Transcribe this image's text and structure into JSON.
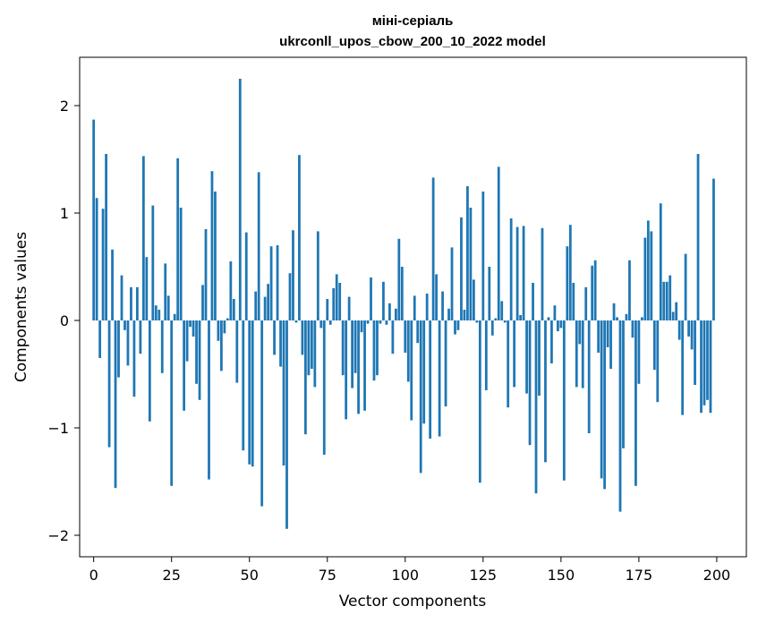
{
  "chart_data": {
    "type": "bar",
    "title_line1": "міні-серіаль",
    "title_line2": "ukrconll_upos_cbow_200_10_2022 model",
    "xlabel": "Vector components",
    "ylabel": "Components values",
    "xlim": [
      -4.5,
      209.5
    ],
    "ylim": [
      -2.2,
      2.45
    ],
    "xticks": [
      0,
      25,
      50,
      75,
      100,
      125,
      150,
      175,
      200
    ],
    "yticks": [
      2,
      1,
      0,
      -1,
      -2
    ],
    "ytick_labels": [
      "2",
      "1",
      "0",
      "−1",
      "−2"
    ],
    "grid": false,
    "bar_color": "#1f77b4",
    "values": [
      1.87,
      1.14,
      -0.35,
      1.04,
      1.55,
      -1.18,
      0.66,
      -1.56,
      -0.53,
      0.42,
      -0.09,
      -0.42,
      0.31,
      -0.71,
      0.31,
      -0.31,
      1.53,
      0.59,
      -0.94,
      1.07,
      0.14,
      0.1,
      -0.49,
      0.53,
      0.23,
      -1.54,
      0.06,
      1.51,
      1.05,
      -0.84,
      -0.38,
      -0.06,
      -0.15,
      -0.59,
      -0.74,
      0.33,
      0.85,
      -1.48,
      1.39,
      1.2,
      -0.19,
      -0.47,
      -0.12,
      0.02,
      0.55,
      0.2,
      -0.58,
      2.25,
      -1.21,
      0.82,
      -1.34,
      -1.36,
      0.27,
      1.38,
      -1.73,
      0.22,
      0.34,
      0.69,
      -0.32,
      0.7,
      -0.43,
      -1.35,
      -1.94,
      0.44,
      0.84,
      -0.02,
      1.54,
      -0.32,
      -1.06,
      -0.51,
      -0.45,
      -0.62,
      0.83,
      -0.07,
      -1.25,
      0.2,
      -0.04,
      0.3,
      0.43,
      0.35,
      -0.51,
      -0.92,
      0.22,
      -0.63,
      -0.49,
      -0.87,
      -0.11,
      -0.84,
      -0.03,
      0.4,
      -0.56,
      -0.51,
      -0.03,
      0.36,
      -0.04,
      0.16,
      -0.31,
      0.11,
      0.76,
      0.5,
      -0.3,
      -0.57,
      -0.93,
      0.23,
      -0.21,
      -1.42,
      -0.96,
      0.25,
      -1.1,
      1.33,
      0.43,
      -1.08,
      0.27,
      -0.8,
      0.11,
      0.68,
      -0.13,
      -0.09,
      0.96,
      0.1,
      1.25,
      1.05,
      0.38,
      -0.02,
      -1.51,
      1.2,
      -0.65,
      0.5,
      -0.14,
      0.02,
      1.43,
      0.18,
      -0.02,
      -0.81,
      0.95,
      -0.62,
      0.87,
      0.05,
      0.88,
      -0.68,
      -1.16,
      0.35,
      -1.61,
      -0.7,
      0.86,
      -1.32,
      0.03,
      -0.4,
      0.14,
      -0.1,
      -0.07,
      -1.49,
      0.69,
      0.89,
      0.35,
      -0.62,
      -0.22,
      -0.63,
      0.31,
      -1.05,
      0.51,
      0.56,
      -0.3,
      -1.47,
      -1.57,
      -0.25,
      -0.45,
      0.16,
      0.03,
      -1.78,
      -1.19,
      0.06,
      0.56,
      -0.16,
      -1.54,
      -0.59,
      0.03,
      0.77,
      0.93,
      0.83,
      -0.46,
      -0.76,
      1.09,
      0.36,
      0.36,
      0.42,
      0.08,
      0.17,
      -0.18,
      -0.88,
      0.62,
      -0.15,
      -0.27,
      -0.6,
      1.55,
      -0.86,
      -0.79,
      -0.74,
      -0.86,
      1.32
    ]
  }
}
